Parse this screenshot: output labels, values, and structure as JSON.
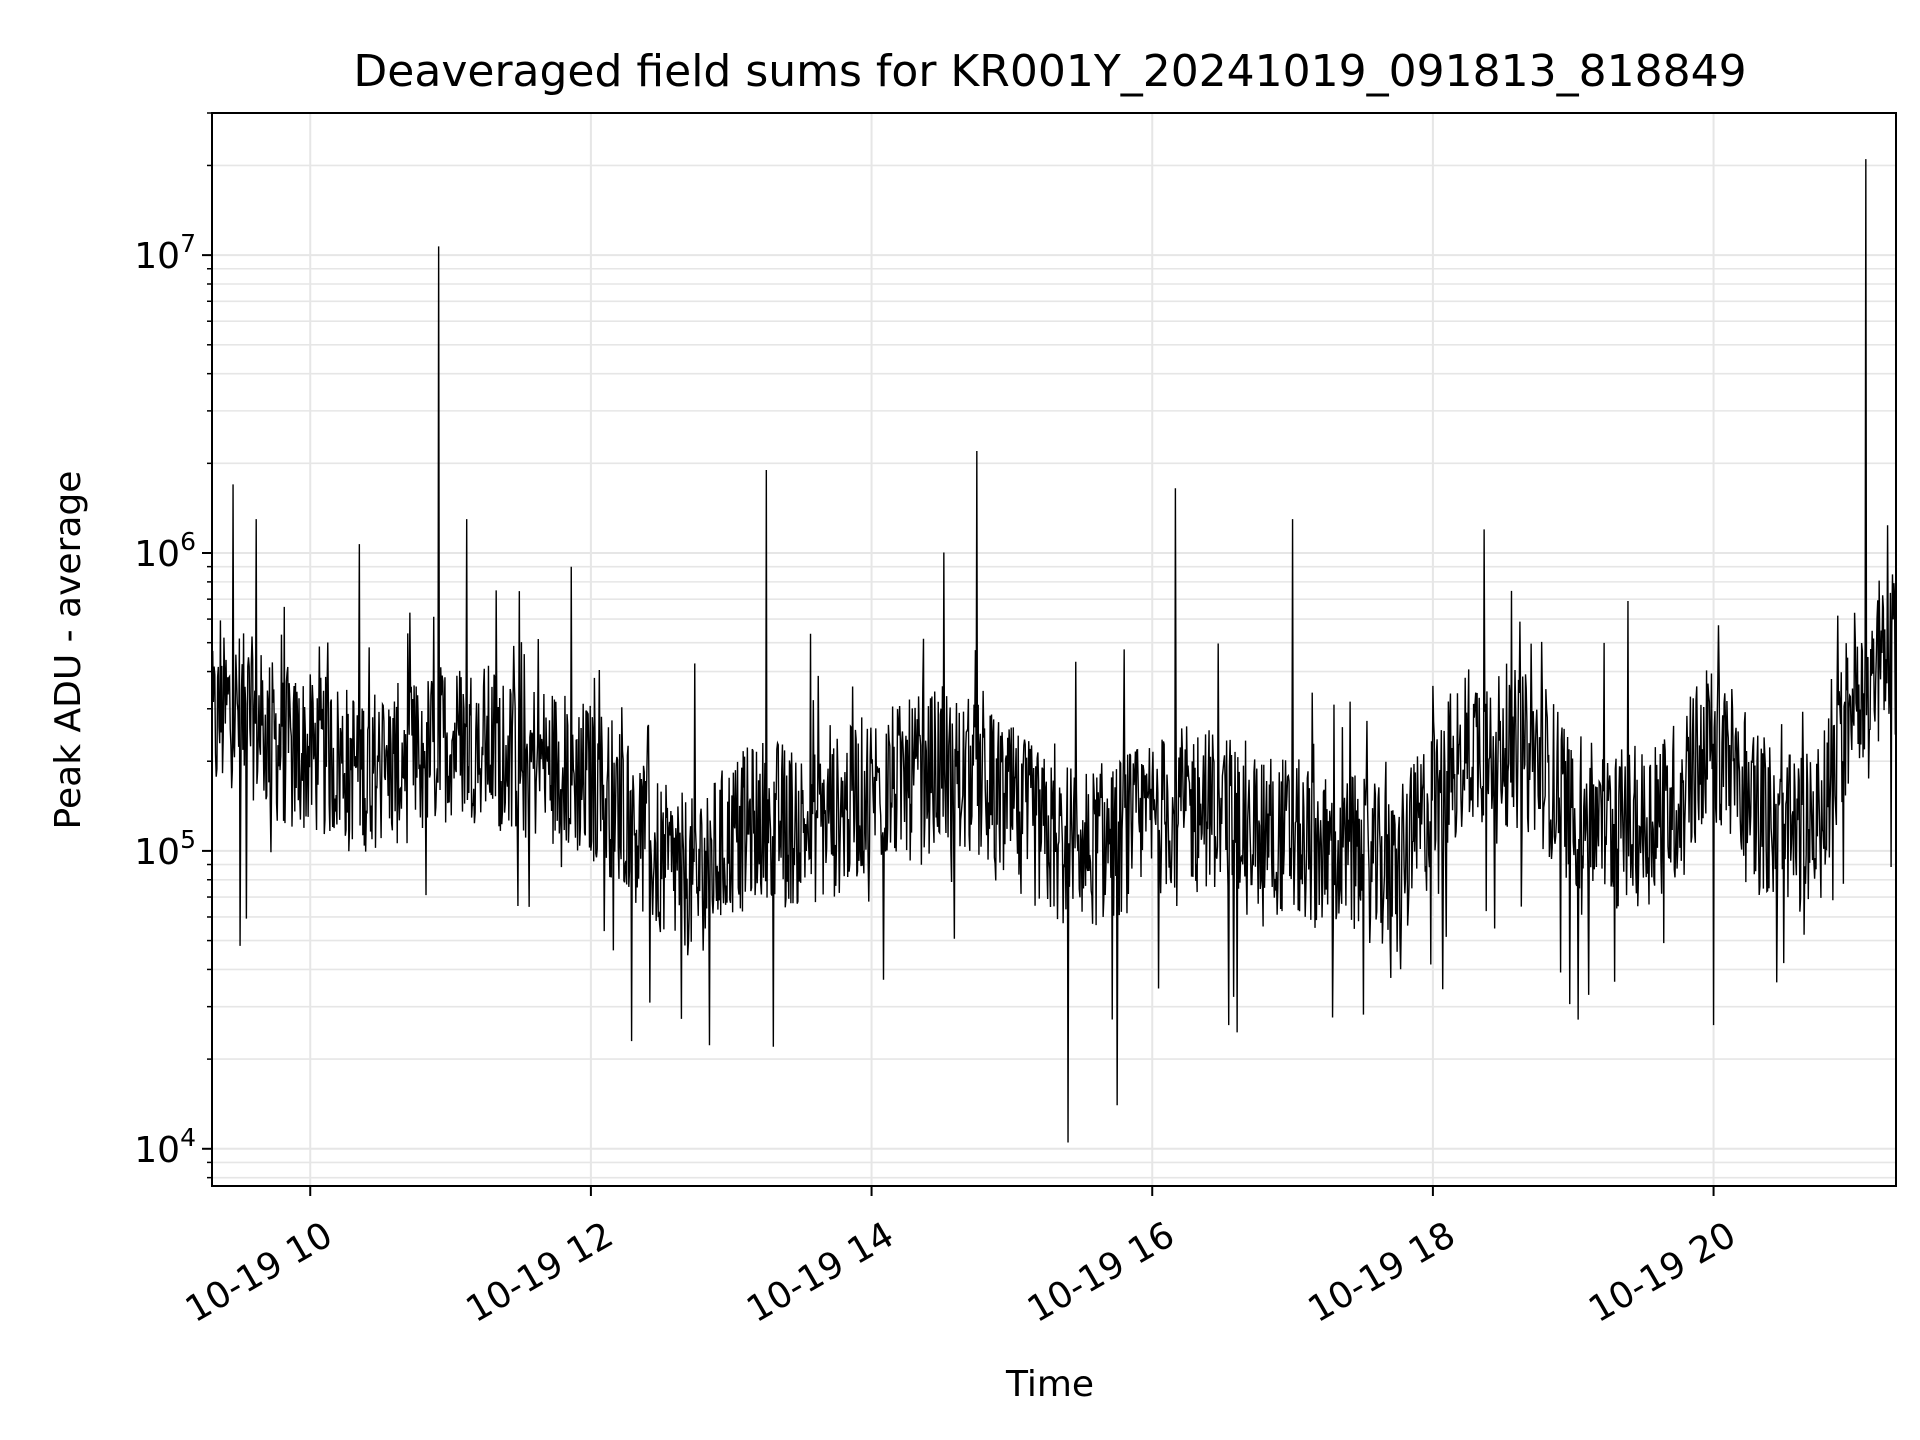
{
  "chart_data": {
    "type": "line",
    "title": "Deaveraged field sums for KR001Y_20241019_091813_818849",
    "xlabel": "Time",
    "ylabel": "Peak ADU - average",
    "x_scale": "time",
    "y_scale": "log",
    "xlim": [
      "10-19 09:18",
      "10-19 21:18"
    ],
    "ylim": [
      7500,
      30000000
    ],
    "x_ticks": [
      "10-19 10",
      "10-19 12",
      "10-19 14",
      "10-19 16",
      "10-19 18",
      "10-19 20"
    ],
    "y_ticks": [
      {
        "value": 10000,
        "base": "10",
        "exp": "4"
      },
      {
        "value": 100000,
        "base": "10",
        "exp": "5"
      },
      {
        "value": 1000000,
        "base": "10",
        "exp": "6"
      },
      {
        "value": 10000000,
        "base": "10",
        "exp": "7"
      }
    ],
    "grid": true,
    "line_color": "#000000",
    "grid_color": "#e6e6e6",
    "series": [
      {
        "x": [
          "10-19 09:18",
          "10-19 09:25",
          "10-19 09:35",
          "10-19 09:45",
          "10-19 10:00",
          "10-19 10:15",
          "10-19 10:30",
          "10-19 10:45",
          "10-19 11:00",
          "10-19 11:15",
          "10-19 11:30",
          "10-19 11:45",
          "10-19 12:00",
          "10-19 12:15",
          "10-19 12:30",
          "10-19 12:45",
          "10-19 13:00",
          "10-19 13:15",
          "10-19 13:30",
          "10-19 13:45",
          "10-19 14:00",
          "10-19 14:15",
          "10-19 14:30",
          "10-19 14:45",
          "10-19 15:00",
          "10-19 15:15",
          "10-19 15:30",
          "10-19 15:45",
          "10-19 16:00",
          "10-19 16:15",
          "10-19 16:30",
          "10-19 16:45",
          "10-19 17:00",
          "10-19 17:15",
          "10-19 17:30",
          "10-19 17:45",
          "10-19 18:00",
          "10-19 18:15",
          "10-19 18:30",
          "10-19 18:45",
          "10-19 19:00",
          "10-19 19:15",
          "10-19 19:30",
          "10-19 19:45",
          "10-19 20:00",
          "10-19 20:15",
          "10-19 20:30",
          "10-19 20:45",
          "10-19 21:00",
          "10-19 21:10",
          "10-19 21:18"
        ],
        "values": [
          250000,
          300000,
          280000,
          230000,
          210000,
          200000,
          190000,
          200000,
          240000,
          230000,
          210000,
          190000,
          170000,
          140000,
          90000,
          80000,
          110000,
          130000,
          120000,
          130000,
          160000,
          170000,
          190000,
          170000,
          140000,
          110000,
          100000,
          110000,
          130000,
          140000,
          140000,
          120000,
          110000,
          100000,
          95000,
          80000,
          150000,
          230000,
          230000,
          200000,
          140000,
          120000,
          120000,
          150000,
          250000,
          160000,
          110000,
          120000,
          350000,
          450000,
          460000
        ]
      }
    ],
    "spikes": [
      {
        "x": "10-19 09:27",
        "value": 1700000
      },
      {
        "x": "10-19 09:37",
        "value": 1300000
      },
      {
        "x": "10-19 09:30",
        "value": 48000
      },
      {
        "x": "10-19 10:55",
        "value": 10700000
      },
      {
        "x": "10-19 11:07",
        "value": 1300000
      },
      {
        "x": "10-19 13:15",
        "value": 1900000
      },
      {
        "x": "10-19 13:18",
        "value": 22000
      },
      {
        "x": "10-19 14:45",
        "value": 2200000
      },
      {
        "x": "10-19 15:24",
        "value": 10500
      },
      {
        "x": "10-19 15:45",
        "value": 14000
      },
      {
        "x": "10-19 16:10",
        "value": 1650000
      },
      {
        "x": "10-19 17:00",
        "value": 1300000
      },
      {
        "x": "10-19 18:22",
        "value": 1200000
      },
      {
        "x": "10-19 20:00",
        "value": 26000
      },
      {
        "x": "10-19 20:30",
        "value": 42000
      },
      {
        "x": "10-19 21:05",
        "value": 21000000
      }
    ]
  }
}
